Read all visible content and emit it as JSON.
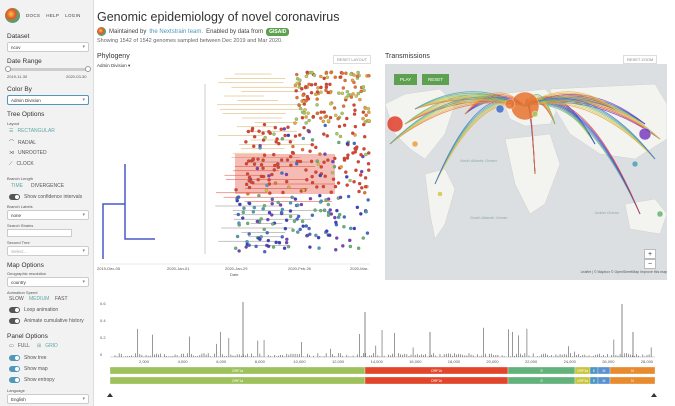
{
  "header": {
    "docs": "DOCS",
    "help": "HELP",
    "login": "LOGIN"
  },
  "sidebar": {
    "dataset_label": "Dataset",
    "dataset_value": "ncov",
    "date_range_label": "Date Range",
    "date_start": "2019-11-30",
    "date_end": "2020-03-30",
    "color_by_label": "Color By",
    "color_by_value": "Admin Division",
    "tree_options_label": "Tree Options",
    "layout_label": "Layout",
    "layouts": [
      "RECTANGULAR",
      "RADIAL",
      "UNROOTED",
      "CLOCK"
    ],
    "branch_length_label": "Branch Length",
    "branch_time": "TIME",
    "branch_divergence": "DIVERGENCE",
    "confidence_label": "Show confidence intervals",
    "branch_labels_label": "Branch Labels",
    "branch_labels_value": "none",
    "search_strains_label": "Search Strains",
    "second_tree_label": "Second Tree",
    "second_tree_placeholder": "Select...",
    "map_options_label": "Map Options",
    "geo_res_label": "Geographic resolution",
    "geo_res_value": "country",
    "anim_speed_label": "Animation Speed",
    "speeds": [
      "SLOW",
      "MEDIUM",
      "FAST"
    ],
    "loop_label": "Loop animation",
    "cumulative_label": "Animate cumulative history",
    "panel_options_label": "Panel Options",
    "full_label": "FULL",
    "grid_label": "GRID",
    "show_tree": "Show tree",
    "show_map": "Show map",
    "show_entropy": "Show entropy",
    "language_label": "Language",
    "language_value": "English"
  },
  "title": "Genomic epidemiology of novel coronavirus",
  "maintained": {
    "prefix": "Maintained by",
    "team": "the Nextstrain team.",
    "suffix": "Enabled by data from",
    "gisaid": "GISAID"
  },
  "showing": "Showing 1542 of 1542 genomes sampled between Dec 2019 and Mar 2020.",
  "phylogeny": {
    "title": "Phylogeny",
    "reset": "RESET LAYOUT",
    "color_by": "Admin Division",
    "xlabel": "Date",
    "ticks": [
      "2019-Dec-05",
      "2020-Jan-01",
      "2020-Jan-29",
      "2020-Feb-26",
      "2020-Mar-"
    ]
  },
  "transmissions": {
    "title": "Transmissions",
    "reset_zoom": "RESET ZOOM",
    "play": "PLAY",
    "reset": "RESET",
    "labels": [
      "North Atlantic Ocean",
      "South Atlantic Ocean",
      "Indian Ocean"
    ],
    "attribution": "Leaflet | © Mapbox © OpenStreetMap Improve this map"
  },
  "entropy": {
    "yticks": [
      "0.6",
      "0.4",
      "0.2",
      "0"
    ],
    "xticks": [
      "2,000",
      "4,000",
      "6,000",
      "8,000",
      "10,000",
      "12,000",
      "14,000",
      "16,000",
      "18,000",
      "20,000",
      "22,000",
      "24,000",
      "26,000",
      "28,000"
    ],
    "genes": [
      {
        "name": "ORF1a",
        "color": "#9dc15b"
      },
      {
        "name": "ORF1b",
        "color": "#e2462a"
      },
      {
        "name": "S",
        "color": "#64b27b"
      },
      {
        "name": "ORF3a",
        "color": "#c9c43a"
      },
      {
        "name": "E",
        "color": "#4d96c4"
      },
      {
        "name": "M",
        "color": "#5a8fd0"
      },
      {
        "name": "N",
        "color": "#e88a2e"
      }
    ]
  }
}
